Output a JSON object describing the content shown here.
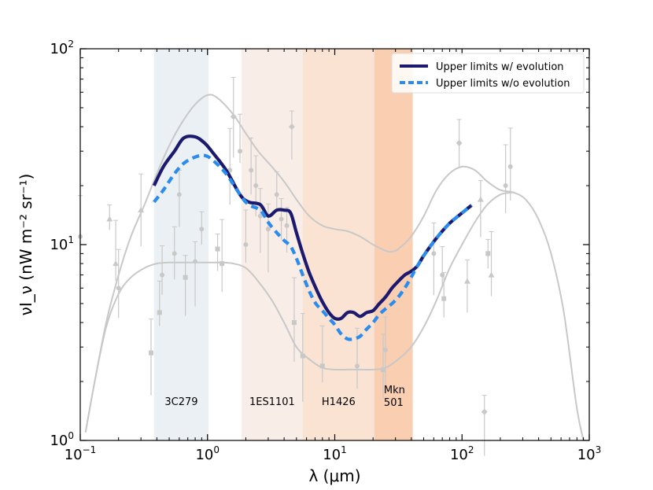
{
  "chart_data": {
    "type": "line",
    "xscale": "log",
    "yscale": "log",
    "xlim": [
      0.1,
      1000
    ],
    "ylim": [
      1,
      100
    ],
    "xlabel": "λ (μm)",
    "ylabel": "νI_ν (nW m⁻² sr⁻¹)",
    "x_ticks": [
      {
        "value": 0.1,
        "base": "10",
        "exp": "−1"
      },
      {
        "value": 1,
        "base": "10",
        "exp": "0"
      },
      {
        "value": 10,
        "base": "10",
        "exp": "1"
      },
      {
        "value": 100,
        "base": "10",
        "exp": "2"
      },
      {
        "value": 1000,
        "base": "10",
        "exp": "3"
      }
    ],
    "y_ticks": [
      {
        "value": 1,
        "base": "10",
        "exp": "0"
      },
      {
        "value": 10,
        "base": "10",
        "exp": "1"
      },
      {
        "value": 100,
        "base": "10",
        "exp": "2"
      }
    ],
    "bands": [
      {
        "name": "3C279",
        "label_lines": [
          "3C279"
        ],
        "range": [
          0.38,
          1.02
        ],
        "color": "#e8edf2",
        "opacity": 0.85
      },
      {
        "name": "1ES1101",
        "label_lines": [
          "1ES1101"
        ],
        "range": [
          1.85,
          5.6
        ],
        "color": "#f7e9e1",
        "opacity": 0.8
      },
      {
        "name": "H1426",
        "label_lines": [
          "H1426"
        ],
        "range": [
          5.6,
          20.5
        ],
        "color": "#f9dcc8",
        "opacity": 0.8
      },
      {
        "name": "Mkn 501",
        "label_lines": [
          "Mkn",
          "501"
        ],
        "range": [
          20.5,
          41
        ],
        "color": "#f8c5a3",
        "opacity": 0.85
      }
    ],
    "legend": {
      "position": "top-right",
      "entries": [
        {
          "label": "Upper limits w/ evolution",
          "color": "#1b1a6e",
          "dash": "solid"
        },
        {
          "label": "Upper limits w/o evolution",
          "color": "#2b8cf0",
          "dash": "dashed"
        }
      ]
    },
    "series": [
      {
        "name": "Upper limits w/ evolution",
        "color": "#1b1a6e",
        "style": "solid",
        "x": [
          0.38,
          0.45,
          0.55,
          0.65,
          0.8,
          0.95,
          1.1,
          1.4,
          1.8,
          2.1,
          2.6,
          3.0,
          3.5,
          4.0,
          4.5,
          5.0,
          5.6,
          6.3,
          7.1,
          8.0,
          9.0,
          10.0,
          11.2,
          12.6,
          14.1,
          15.8,
          17.8,
          20.0,
          22.4,
          25.1,
          28.2,
          31.6,
          35.5,
          39.8,
          44.7,
          50.1,
          63.1,
          79.4,
          100,
          119
        ],
        "y": [
          20.0,
          25.0,
          30.0,
          35.0,
          35.5,
          33.0,
          29.5,
          24.0,
          18.0,
          16.5,
          16.0,
          14.0,
          15.0,
          15.0,
          14.5,
          11.5,
          9.0,
          7.2,
          6.0,
          5.1,
          4.5,
          4.2,
          4.2,
          4.5,
          4.5,
          4.3,
          4.5,
          4.6,
          5.0,
          5.4,
          6.0,
          6.5,
          7.0,
          7.3,
          7.8,
          8.8,
          10.8,
          12.8,
          14.5,
          15.9
        ]
      },
      {
        "name": "Upper limits w/o evolution",
        "color": "#2b8cf0",
        "style": "dashed",
        "x": [
          0.38,
          0.45,
          0.55,
          0.65,
          0.8,
          0.95,
          1.1,
          1.4,
          1.8,
          2.1,
          2.6,
          3.0,
          3.5,
          4.0,
          4.5,
          5.0,
          5.6,
          6.3,
          7.1,
          8.0,
          9.0,
          10.0,
          11.2,
          12.6,
          14.1,
          15.8,
          17.8,
          20.0,
          22.4,
          25.1,
          28.2,
          31.6,
          35.5,
          39.8,
          44.7,
          50.1,
          63.1,
          79.4,
          100,
          119
        ],
        "y": [
          16.5,
          19.0,
          23.0,
          26.0,
          28.0,
          28.5,
          27.0,
          23.0,
          18.0,
          16.0,
          15.0,
          13.0,
          11.5,
          10.5,
          9.8,
          8.5,
          7.0,
          5.8,
          5.0,
          4.6,
          4.2,
          3.9,
          3.5,
          3.3,
          3.3,
          3.4,
          3.7,
          4.0,
          4.4,
          4.7,
          5.0,
          5.4,
          6.0,
          6.8,
          7.8,
          8.8,
          10.8,
          12.8,
          14.5,
          15.9
        ]
      },
      {
        "name": "EBL model upper envelope",
        "color": "#c8c8c8",
        "style": "solid",
        "x": [
          0.11,
          0.13,
          0.16,
          0.2,
          0.25,
          0.32,
          0.4,
          0.5,
          0.63,
          0.8,
          1.0,
          1.2,
          1.6,
          2.0,
          2.5,
          3.2,
          4.0,
          5.0,
          6.3,
          8.0,
          10.0,
          12.6,
          15.8,
          20.0,
          25.1,
          28.2,
          31.6,
          39.8,
          50.1,
          63.1,
          79.4,
          100,
          126,
          158,
          200,
          251,
          316,
          398,
          501,
          631,
          794,
          900
        ],
        "y": [
          1.1,
          2.0,
          4.0,
          7.0,
          11.0,
          16.0,
          23.0,
          32.0,
          42.0,
          52.0,
          58.0,
          56.0,
          46.0,
          37.0,
          30.0,
          25.0,
          21.0,
          17.0,
          14.0,
          12.5,
          12.0,
          11.7,
          11.0,
          10.0,
          9.3,
          9.2,
          9.5,
          11.0,
          14.0,
          19.0,
          23.0,
          25.0,
          24.0,
          21.0,
          19.0,
          18.5,
          17.0,
          13.5,
          9.0,
          4.5,
          1.5,
          1.0
        ]
      },
      {
        "name": "EBL model lower envelope",
        "color": "#c8c8c8",
        "style": "solid",
        "x": [
          0.11,
          0.13,
          0.16,
          0.2,
          0.25,
          0.32,
          0.4,
          0.5,
          0.63,
          0.8,
          1.0,
          1.3,
          1.6,
          2.0,
          2.5,
          3.2,
          4.0,
          5.0,
          6.3,
          8.0,
          10.0,
          12.6,
          15.8,
          20.0,
          25.1,
          31.6,
          39.8,
          50.1,
          63.1,
          79.4,
          100,
          126,
          158,
          200,
          251
        ],
        "y": [
          1.1,
          2.0,
          3.8,
          5.6,
          6.8,
          7.6,
          8.0,
          8.1,
          8.1,
          8.1,
          8.1,
          8.1,
          8.0,
          7.6,
          6.5,
          5.2,
          4.0,
          3.0,
          2.6,
          2.35,
          2.3,
          2.3,
          2.3,
          2.3,
          2.35,
          2.6,
          3.0,
          3.8,
          5.2,
          7.5,
          10.0,
          13.0,
          16.0,
          18.0,
          18.5
        ]
      }
    ],
    "measurements": {
      "color": "#c8c8c8",
      "points": [
        {
          "x": 0.17,
          "y": 13.5,
          "marker": "triangle",
          "up": true
        },
        {
          "x": 0.19,
          "y": 8.0,
          "marker": "triangle"
        },
        {
          "x": 0.1,
          "y": 11.0,
          "marker": "circle"
        },
        {
          "x": 0.2,
          "y": 6.0,
          "marker": "circle"
        },
        {
          "x": 0.3,
          "y": 15.0,
          "marker": "triangle"
        },
        {
          "x": 0.36,
          "y": 2.8,
          "marker": "square"
        },
        {
          "x": 0.42,
          "y": 4.5,
          "marker": "square"
        },
        {
          "x": 0.44,
          "y": 7.0,
          "marker": "circle"
        },
        {
          "x": 0.55,
          "y": 9.0,
          "marker": "circle"
        },
        {
          "x": 0.6,
          "y": 18.0,
          "marker": "circle"
        },
        {
          "x": 0.67,
          "y": 6.8,
          "marker": "square"
        },
        {
          "x": 0.8,
          "y": 8.2,
          "marker": "circle"
        },
        {
          "x": 0.9,
          "y": 12.0,
          "marker": "circle"
        },
        {
          "x": 1.2,
          "y": 9.5,
          "marker": "square"
        },
        {
          "x": 1.3,
          "y": 8.0,
          "marker": "square"
        },
        {
          "x": 1.5,
          "y": 24.0,
          "marker": "circle"
        },
        {
          "x": 1.6,
          "y": 45.0,
          "marker": "diamond"
        },
        {
          "x": 1.8,
          "y": 30.0,
          "marker": "circle"
        },
        {
          "x": 2.0,
          "y": 10.0,
          "marker": "circle"
        },
        {
          "x": 2.2,
          "y": 24.0,
          "marker": "circle"
        },
        {
          "x": 2.4,
          "y": 20.0,
          "marker": "circle"
        },
        {
          "x": 2.6,
          "y": 14.0,
          "marker": "circle"
        },
        {
          "x": 3.0,
          "y": 12.0,
          "marker": "circle"
        },
        {
          "x": 3.5,
          "y": 18.0,
          "marker": "circle"
        },
        {
          "x": 3.8,
          "y": 13.5,
          "marker": "circle"
        },
        {
          "x": 4.2,
          "y": 12.5,
          "marker": "circle"
        },
        {
          "x": 4.6,
          "y": 40.0,
          "marker": "diamond"
        },
        {
          "x": 4.8,
          "y": 4.0,
          "marker": "square"
        },
        {
          "x": 5.6,
          "y": 2.7,
          "marker": "square"
        },
        {
          "x": 8.0,
          "y": 2.4,
          "marker": "square"
        },
        {
          "x": 15.0,
          "y": 2.4,
          "marker": "circle"
        },
        {
          "x": 24.0,
          "y": 2.3,
          "marker": "square"
        },
        {
          "x": 25.0,
          "y": 2.9,
          "marker": "circle"
        },
        {
          "x": 60.0,
          "y": 9.0,
          "marker": "circle"
        },
        {
          "x": 70.0,
          "y": 7.0,
          "marker": "circle"
        },
        {
          "x": 72.0,
          "y": 5.3,
          "marker": "square"
        },
        {
          "x": 95.0,
          "y": 33.0,
          "marker": "diamond"
        },
        {
          "x": 110.0,
          "y": 6.5,
          "marker": "triangle"
        },
        {
          "x": 140.0,
          "y": 17.0,
          "marker": "triangle"
        },
        {
          "x": 150.0,
          "y": 1.4,
          "marker": "diamond"
        },
        {
          "x": 160.0,
          "y": 9.0,
          "marker": "square"
        },
        {
          "x": 170.0,
          "y": 7.0,
          "marker": "triangle"
        },
        {
          "x": 220.0,
          "y": 20.0,
          "marker": "circle"
        },
        {
          "x": 240.0,
          "y": 25.0,
          "marker": "circle"
        }
      ]
    }
  }
}
